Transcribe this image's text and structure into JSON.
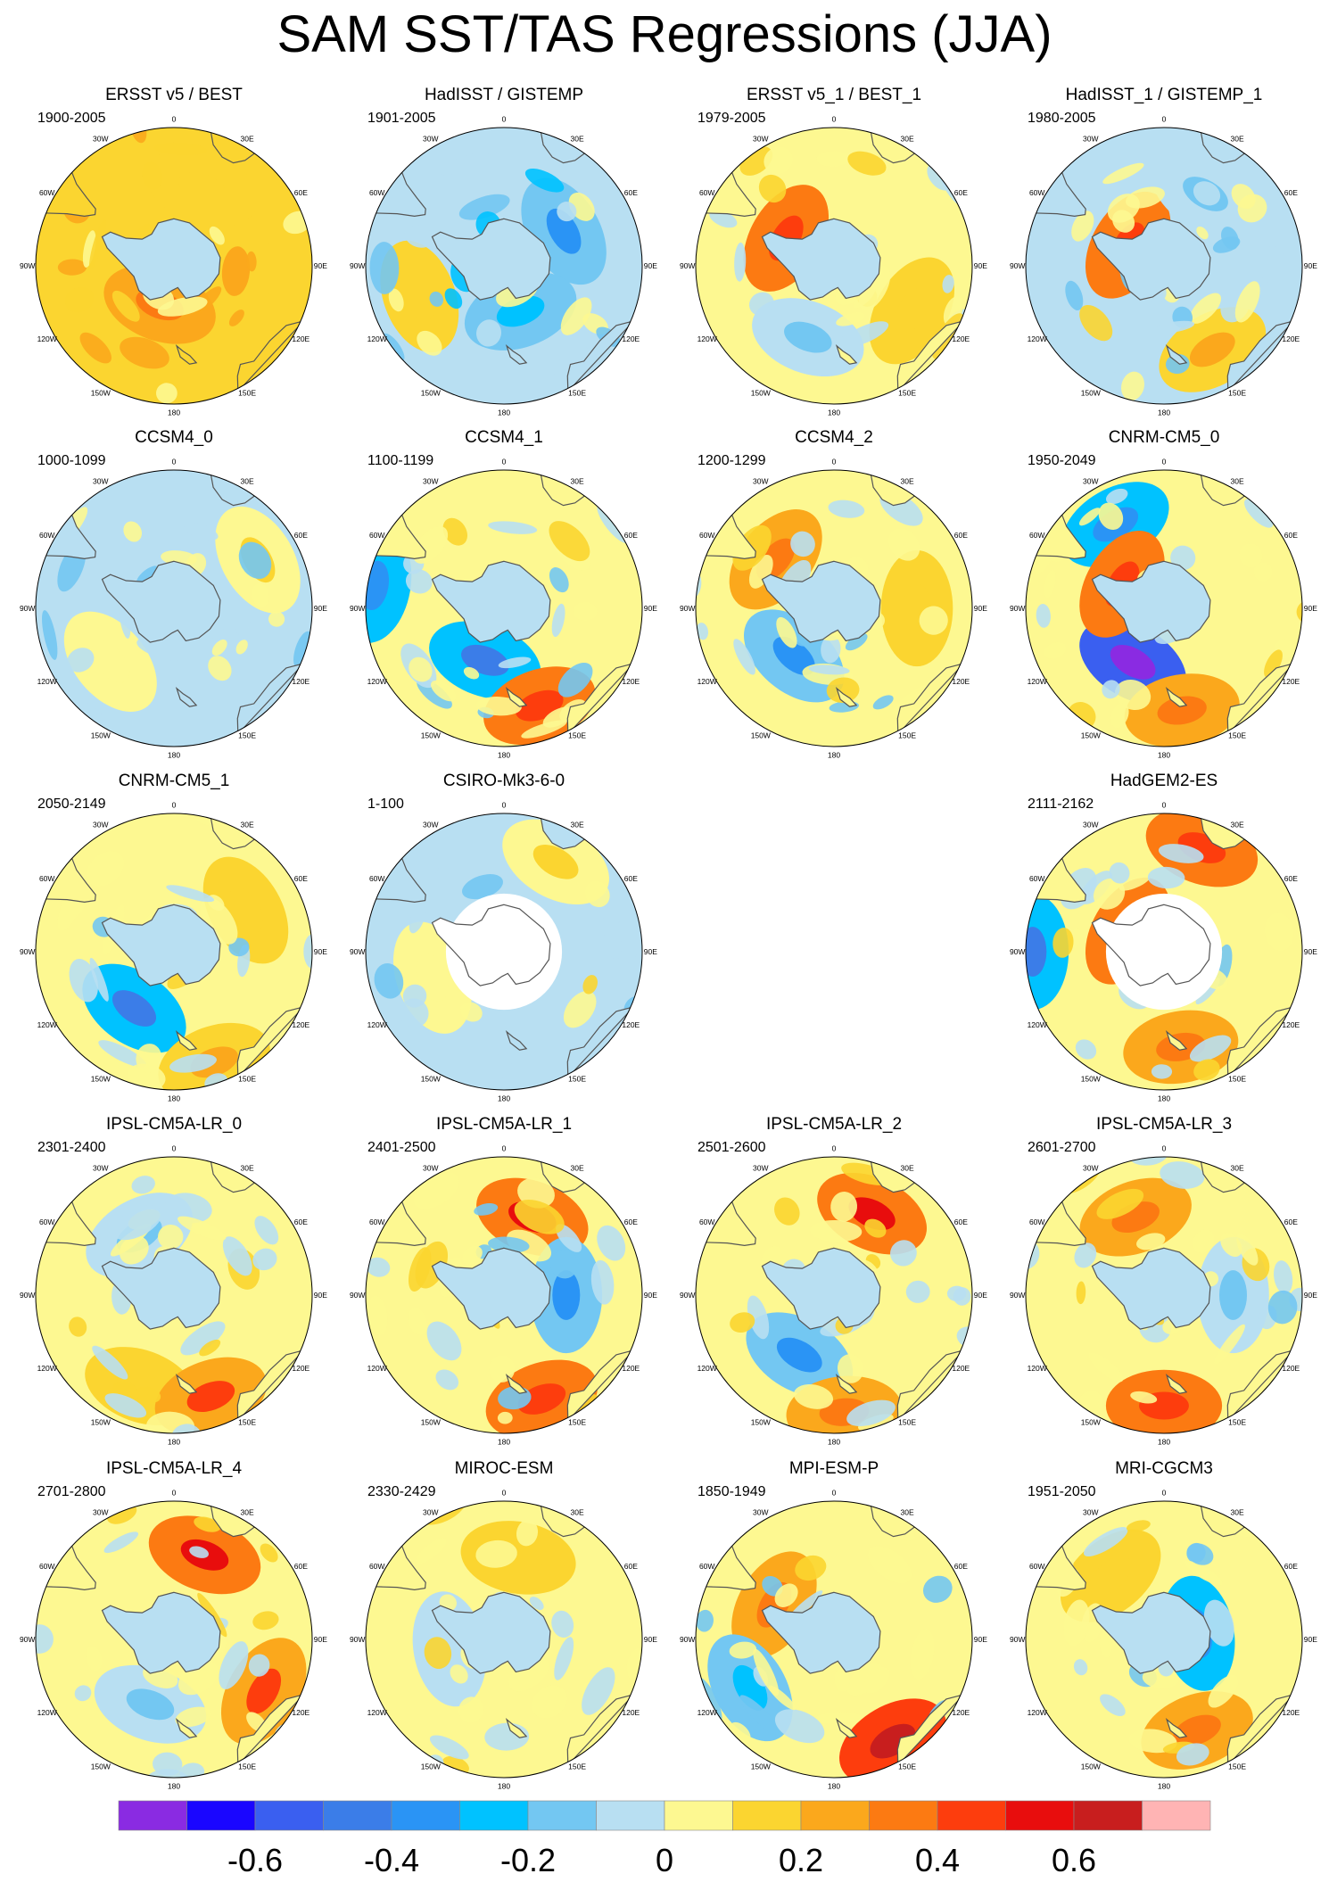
{
  "title": "SAM SST/TAS Regressions (JJA)",
  "longitude_labels": [
    "0",
    "30E",
    "60E",
    "90E",
    "120E",
    "150E",
    "180",
    "150W",
    "120W",
    "90W",
    "60W",
    "30W"
  ],
  "panels": [
    {
      "row": 0,
      "col": 0,
      "title": "ERSST v5 / BEST",
      "years": "1900-2005",
      "base": 0.15,
      "ice_masked": false,
      "wash": [
        [
          95,
          0.18,
          0.45
        ],
        [
          200,
          0.2,
          0.3
        ],
        [
          20,
          0.12,
          0.6
        ]
      ]
    },
    {
      "row": 0,
      "col": 1,
      "title": "HadISST / GISTEMP",
      "years": "1901-2005",
      "base": -0.1,
      "ice_masked": false,
      "wash": [
        [
          60,
          -0.2,
          0.5
        ],
        [
          250,
          0.1,
          0.65
        ],
        [
          160,
          -0.15,
          0.35
        ]
      ]
    },
    {
      "row": 0,
      "col": 2,
      "title": "ERSST v5_1 / BEST_1",
      "years": "1979-2005",
      "base": 0.05,
      "ice_masked": false,
      "wash": [
        [
          300,
          0.3,
          0.4
        ],
        [
          200,
          -0.1,
          0.55
        ],
        [
          120,
          0.1,
          0.65
        ]
      ]
    },
    {
      "row": 0,
      "col": 3,
      "title": "HadISST_1 / GISTEMP_1",
      "years": "1980-2005",
      "base": -0.02,
      "ice_masked": false,
      "wash": [
        [
          300,
          0.3,
          0.3
        ],
        [
          150,
          0.15,
          0.7
        ],
        [
          30,
          -0.1,
          0.6
        ]
      ]
    },
    {
      "row": 1,
      "col": 0,
      "title": "CCSM4_0",
      "years": "1000-1099",
      "base": -0.03,
      "ice_masked": false,
      "wash": [
        [
          60,
          0.08,
          0.7
        ],
        [
          230,
          0.05,
          0.6
        ]
      ]
    },
    {
      "row": 1,
      "col": 1,
      "title": "CCSM4_1",
      "years": "1100-1199",
      "base": 0.0,
      "ice_masked": false,
      "wash": [
        [
          200,
          -0.3,
          0.4
        ],
        [
          160,
          0.3,
          0.75
        ],
        [
          280,
          -0.25,
          0.95
        ]
      ]
    },
    {
      "row": 1,
      "col": 2,
      "title": "CCSM4_2",
      "years": "1200-1299",
      "base": 0.0,
      "ice_masked": false,
      "wash": [
        [
          220,
          -0.2,
          0.45
        ],
        [
          90,
          0.12,
          0.6
        ],
        [
          310,
          0.2,
          0.55
        ]
      ]
    },
    {
      "row": 1,
      "col": 3,
      "title": "CNRM-CM5_0",
      "years": "1950-2049",
      "base": 0.05,
      "ice_masked": false,
      "wash": [
        [
          210,
          -0.55,
          0.45
        ],
        [
          330,
          -0.25,
          0.7
        ],
        [
          300,
          0.3,
          0.35
        ],
        [
          170,
          0.2,
          0.75
        ]
      ]
    },
    {
      "row": 2,
      "col": 0,
      "title": "CNRM-CM5_1",
      "years": "2050-2149",
      "base": 0.0,
      "ice_masked": false,
      "wash": [
        [
          215,
          -0.3,
          0.5
        ],
        [
          60,
          0.1,
          0.6
        ],
        [
          160,
          0.15,
          0.85
        ]
      ]
    },
    {
      "row": 2,
      "col": 1,
      "title": "CSIRO-Mk3-6-0",
      "years": "1-100",
      "base": -0.02,
      "ice_masked": true,
      "wash": [
        [
          30,
          0.08,
          0.75
        ],
        [
          250,
          0.06,
          0.55
        ]
      ]
    },
    {
      "row": 2,
      "col": 3,
      "title": "HadGEM2-ES",
      "years": "2111-2162",
      "base": 0.0,
      "ice_masked": true,
      "wash": [
        [
          20,
          0.3,
          0.8
        ],
        [
          300,
          0.35,
          0.3
        ],
        [
          270,
          -0.3,
          0.95
        ],
        [
          170,
          0.2,
          0.7
        ]
      ]
    },
    {
      "row": 3,
      "col": 0,
      "title": "IPSL-CM5A-LR_0",
      "years": "2301-2400",
      "base": 0.03,
      "ice_masked": false,
      "wash": [
        [
          200,
          0.1,
          0.7
        ],
        [
          160,
          0.25,
          0.78
        ],
        [
          330,
          -0.1,
          0.5
        ]
      ]
    },
    {
      "row": 3,
      "col": 1,
      "title": "IPSL-CM5A-LR_1",
      "years": "2401-2500",
      "base": 0.0,
      "ice_masked": false,
      "wash": [
        [
          20,
          0.35,
          0.6
        ],
        [
          160,
          0.3,
          0.8
        ],
        [
          90,
          -0.2,
          0.45
        ]
      ]
    },
    {
      "row": 3,
      "col": 2,
      "title": "IPSL-CM5A-LR_2",
      "years": "2501-2600",
      "base": 0.02,
      "ice_masked": false,
      "wash": [
        [
          25,
          0.35,
          0.65
        ],
        [
          210,
          -0.2,
          0.5
        ],
        [
          175,
          0.2,
          0.85
        ]
      ]
    },
    {
      "row": 3,
      "col": 3,
      "title": "IPSL-CM5A-LR_3",
      "years": "2601-2700",
      "base": 0.02,
      "ice_masked": false,
      "wash": [
        [
          340,
          0.2,
          0.6
        ],
        [
          180,
          0.3,
          0.8
        ],
        [
          90,
          -0.1,
          0.5
        ]
      ]
    },
    {
      "row": 4,
      "col": 0,
      "title": "IPSL-CM5A-LR_4",
      "years": "2701-2800",
      "base": 0.03,
      "ice_masked": false,
      "wash": [
        [
          20,
          0.35,
          0.65
        ],
        [
          120,
          0.25,
          0.75
        ],
        [
          200,
          -0.1,
          0.5
        ]
      ]
    },
    {
      "row": 4,
      "col": 1,
      "title": "MIROC-ESM",
      "years": "2330-2429",
      "base": 0.05,
      "ice_masked": false,
      "wash": [
        [
          10,
          0.12,
          0.6
        ],
        [
          260,
          -0.05,
          0.4
        ]
      ]
    },
    {
      "row": 4,
      "col": 2,
      "title": "MPI-ESM-P",
      "years": "1850-1949",
      "base": 0.0,
      "ice_masked": false,
      "wash": [
        [
          150,
          0.4,
          0.85
        ],
        [
          300,
          0.2,
          0.5
        ],
        [
          240,
          -0.15,
          0.7
        ]
      ]
    },
    {
      "row": 4,
      "col": 3,
      "title": "MRI-CGCM3",
      "years": "1951-2050",
      "base": 0.02,
      "ice_masked": false,
      "wash": [
        [
          80,
          -0.25,
          0.25
        ],
        [
          160,
          0.2,
          0.7
        ],
        [
          320,
          0.1,
          0.6
        ]
      ]
    }
  ],
  "colorbar": {
    "colors": [
      "#8a2be2",
      "#1a06ff",
      "#3a5ff0",
      "#3b7de8",
      "#2a94f5",
      "#00c2ff",
      "#73c7f2",
      "#b8dff2",
      "#fdf891",
      "#fbd530",
      "#fba81c",
      "#fc7a12",
      "#fd3d0d",
      "#e80d0d",
      "#c81e1e",
      "#ffb4b4"
    ],
    "bounds": [
      -0.7,
      -0.6,
      -0.5,
      -0.4,
      -0.3,
      -0.2,
      -0.1,
      0,
      0.1,
      0.2,
      0.3,
      0.4,
      0.5,
      0.6,
      0.7
    ],
    "tick_labels": [
      "-0.6",
      "-0.4",
      "-0.2",
      "0",
      "0.2",
      "0.4",
      "0.6"
    ],
    "tick_values": [
      -0.6,
      -0.4,
      -0.2,
      0,
      0.2,
      0.4,
      0.6
    ]
  }
}
